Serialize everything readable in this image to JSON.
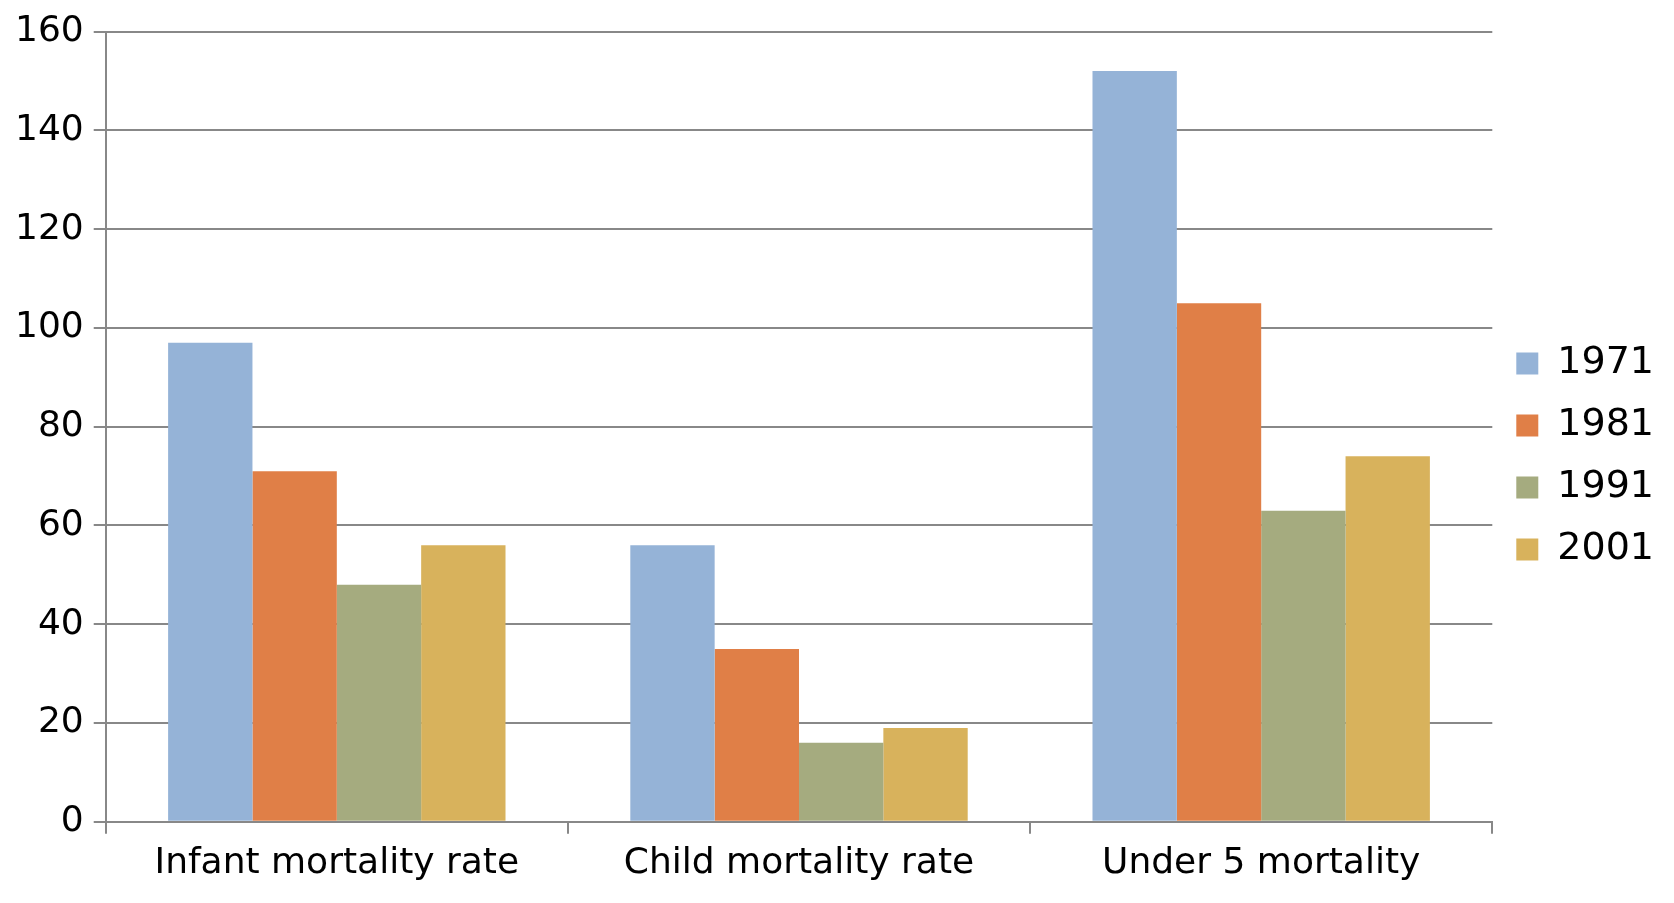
{
  "chart_data": {
    "type": "bar",
    "categories": [
      "Infant mortality rate",
      "Child mortality rate",
      "Under 5 mortality"
    ],
    "series": [
      {
        "name": "1971",
        "color": "#95b3d7",
        "values": [
          97,
          56,
          152
        ]
      },
      {
        "name": "1981",
        "color": "#e07f47",
        "values": [
          71,
          35,
          105
        ]
      },
      {
        "name": "1991",
        "color": "#a5ab7f",
        "values": [
          48,
          16,
          63
        ]
      },
      {
        "name": "2001",
        "color": "#d8b25c",
        "values": [
          56,
          19,
          74
        ]
      }
    ],
    "ylim": [
      0,
      160
    ],
    "yticks": [
      0,
      20,
      40,
      60,
      80,
      100,
      120,
      140,
      160
    ],
    "grid": "y",
    "legend": "right"
  }
}
